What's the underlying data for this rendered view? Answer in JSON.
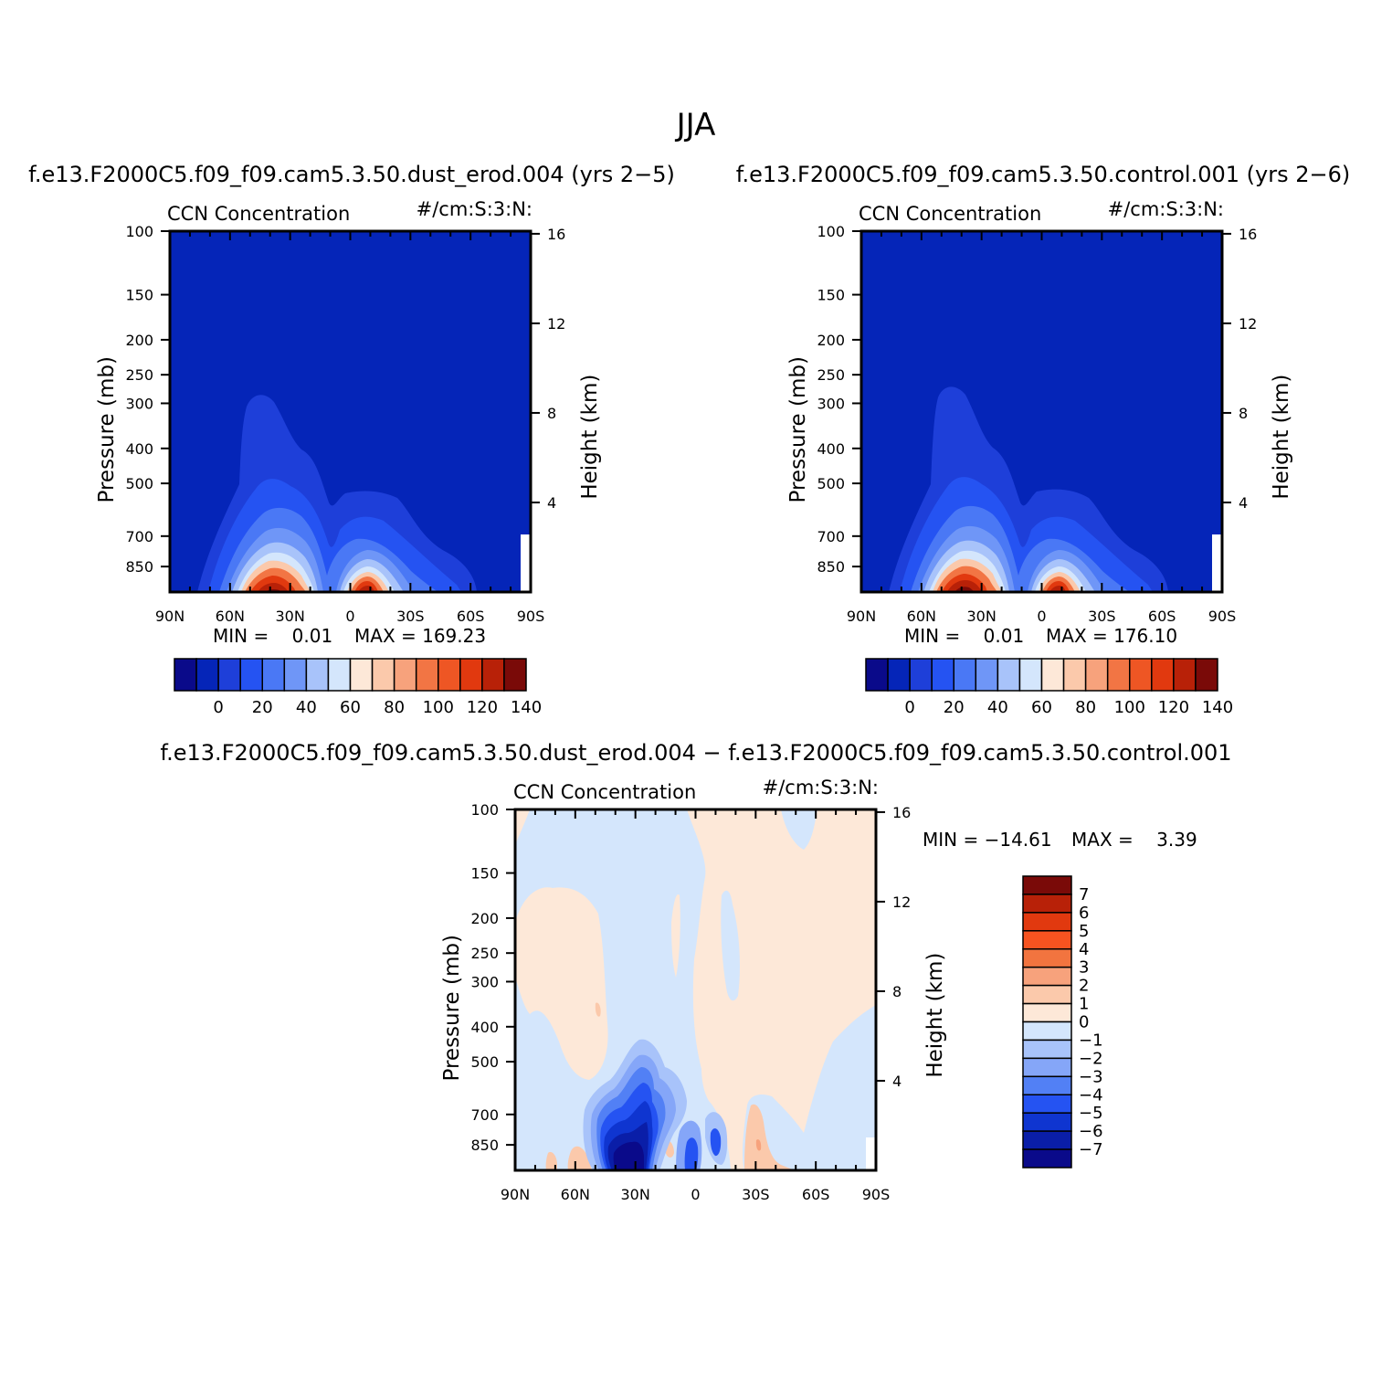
{
  "figure": {
    "title": "JJA"
  },
  "panels": [
    {
      "title": "f.e13.F2000C5.f09_f09.cam5.3.50.dust_erod.004 (yrs 2−5)",
      "left_label": "CCN Concentration",
      "right_label": "#/cm:S:3:N:",
      "ylabel": "Pressure (mb)",
      "y2label": "Height (km)",
      "min_text": "MIN =    0.01",
      "max_text": "MAX = 169.23"
    },
    {
      "title": "f.e13.F2000C5.f09_f09.cam5.3.50.control.001 (yrs 2−6)",
      "left_label": "CCN Concentration",
      "right_label": "#/cm:S:3:N:",
      "ylabel": "Pressure (mb)",
      "y2label": "Height (km)",
      "min_text": "MIN =    0.01",
      "max_text": "MAX = 176.10"
    },
    {
      "title": "f.e13.F2000C5.f09_f09.cam5.3.50.dust_erod.004 − f.e13.F2000C5.f09_f09.cam5.3.50.control.001",
      "left_label": "CCN Concentration",
      "right_label": "#/cm:S:3:N:",
      "ylabel": "Pressure (mb)",
      "y2label": "Height (km)",
      "min_text": "MIN = −14.61",
      "max_text": "MAX =    3.39"
    }
  ],
  "chart_data": [
    {
      "type": "heatmap",
      "x_ticks": [
        "90N",
        "60N",
        "30N",
        "0",
        "30S",
        "60S",
        "90S"
      ],
      "x_values": [
        90,
        60,
        30,
        0,
        -30,
        -60,
        -90
      ],
      "y_ticks": [
        "100",
        "150",
        "200",
        "250",
        "300",
        "400",
        "500",
        "700",
        "850"
      ],
      "y_values": [
        100,
        150,
        200,
        250,
        300,
        400,
        500,
        700,
        850
      ],
      "y_scale": "log",
      "y_range": [
        100,
        1000
      ],
      "y2_ticks": [
        "16",
        "12",
        "8",
        "4"
      ],
      "y2_values": [
        16,
        12,
        8,
        4
      ],
      "colorbar": {
        "orientation": "horizontal",
        "tick_labels": [
          "0",
          "20",
          "40",
          "60",
          "80",
          "100",
          "120",
          "140"
        ],
        "levels": [
          -10,
          0,
          10,
          20,
          30,
          40,
          50,
          60,
          70,
          80,
          90,
          100,
          110,
          120,
          130,
          140
        ],
        "colors": [
          "#0a0a8a",
          "#0525b8",
          "#1e3fd9",
          "#2553f2",
          "#4a78f5",
          "#6f96f7",
          "#a8c3fa",
          "#d4e6fc",
          "#fde8d8",
          "#fbc9ab",
          "#f7a27c",
          "#f27544",
          "#ee5624",
          "#e1390f",
          "#b82108",
          "#7a0a08"
        ]
      },
      "min": 0.01,
      "max": 169.23
    },
    {
      "type": "heatmap",
      "x_ticks": [
        "90N",
        "60N",
        "30N",
        "0",
        "30S",
        "60S",
        "90S"
      ],
      "x_values": [
        90,
        60,
        30,
        0,
        -30,
        -60,
        -90
      ],
      "y_ticks": [
        "100",
        "150",
        "200",
        "250",
        "300",
        "400",
        "500",
        "700",
        "850"
      ],
      "y_values": [
        100,
        150,
        200,
        250,
        300,
        400,
        500,
        700,
        850
      ],
      "y_scale": "log",
      "y_range": [
        100,
        1000
      ],
      "y2_ticks": [
        "16",
        "12",
        "8",
        "4"
      ],
      "y2_values": [
        16,
        12,
        8,
        4
      ],
      "colorbar": {
        "orientation": "horizontal",
        "tick_labels": [
          "0",
          "20",
          "40",
          "60",
          "80",
          "100",
          "120",
          "140"
        ],
        "levels": [
          -10,
          0,
          10,
          20,
          30,
          40,
          50,
          60,
          70,
          80,
          90,
          100,
          110,
          120,
          130,
          140
        ],
        "colors": [
          "#0a0a8a",
          "#0525b8",
          "#1e3fd9",
          "#2553f2",
          "#4a78f5",
          "#6f96f7",
          "#a8c3fa",
          "#d4e6fc",
          "#fde8d8",
          "#fbc9ab",
          "#f7a27c",
          "#f27544",
          "#ee5624",
          "#e1390f",
          "#b82108",
          "#7a0a08"
        ]
      },
      "min": 0.01,
      "max": 176.1
    },
    {
      "type": "heatmap",
      "x_ticks": [
        "90N",
        "60N",
        "30N",
        "0",
        "30S",
        "60S",
        "90S"
      ],
      "x_values": [
        90,
        60,
        30,
        0,
        -30,
        -60,
        -90
      ],
      "y_ticks": [
        "100",
        "150",
        "200",
        "250",
        "300",
        "400",
        "500",
        "700",
        "850"
      ],
      "y_values": [
        100,
        150,
        200,
        250,
        300,
        400,
        500,
        700,
        850
      ],
      "y_scale": "log",
      "y_range": [
        100,
        1000
      ],
      "y2_ticks": [
        "16",
        "12",
        "8",
        "4"
      ],
      "y2_values": [
        16,
        12,
        8,
        4
      ],
      "colorbar": {
        "orientation": "vertical",
        "tick_labels": [
          "7",
          "6",
          "5",
          "4",
          "3",
          "2",
          "1",
          "0",
          "−1",
          "−2",
          "−3",
          "−4",
          "−5",
          "−6",
          "−7"
        ],
        "levels": [
          7,
          6,
          5,
          4,
          3,
          2,
          1,
          0,
          -1,
          -2,
          -3,
          -4,
          -5,
          -6,
          -7
        ],
        "colors": [
          "#7a0a08",
          "#b82108",
          "#e1390f",
          "#f75320",
          "#f2743f",
          "#f7a27c",
          "#fbc9ab",
          "#fde8d8",
          "#d4e6fc",
          "#a8c3fa",
          "#85a6f8",
          "#5280f5",
          "#2553f2",
          "#0f35d0",
          "#0a1ea8",
          "#0a0a8a"
        ]
      },
      "min": -14.61,
      "max": 3.39
    }
  ]
}
